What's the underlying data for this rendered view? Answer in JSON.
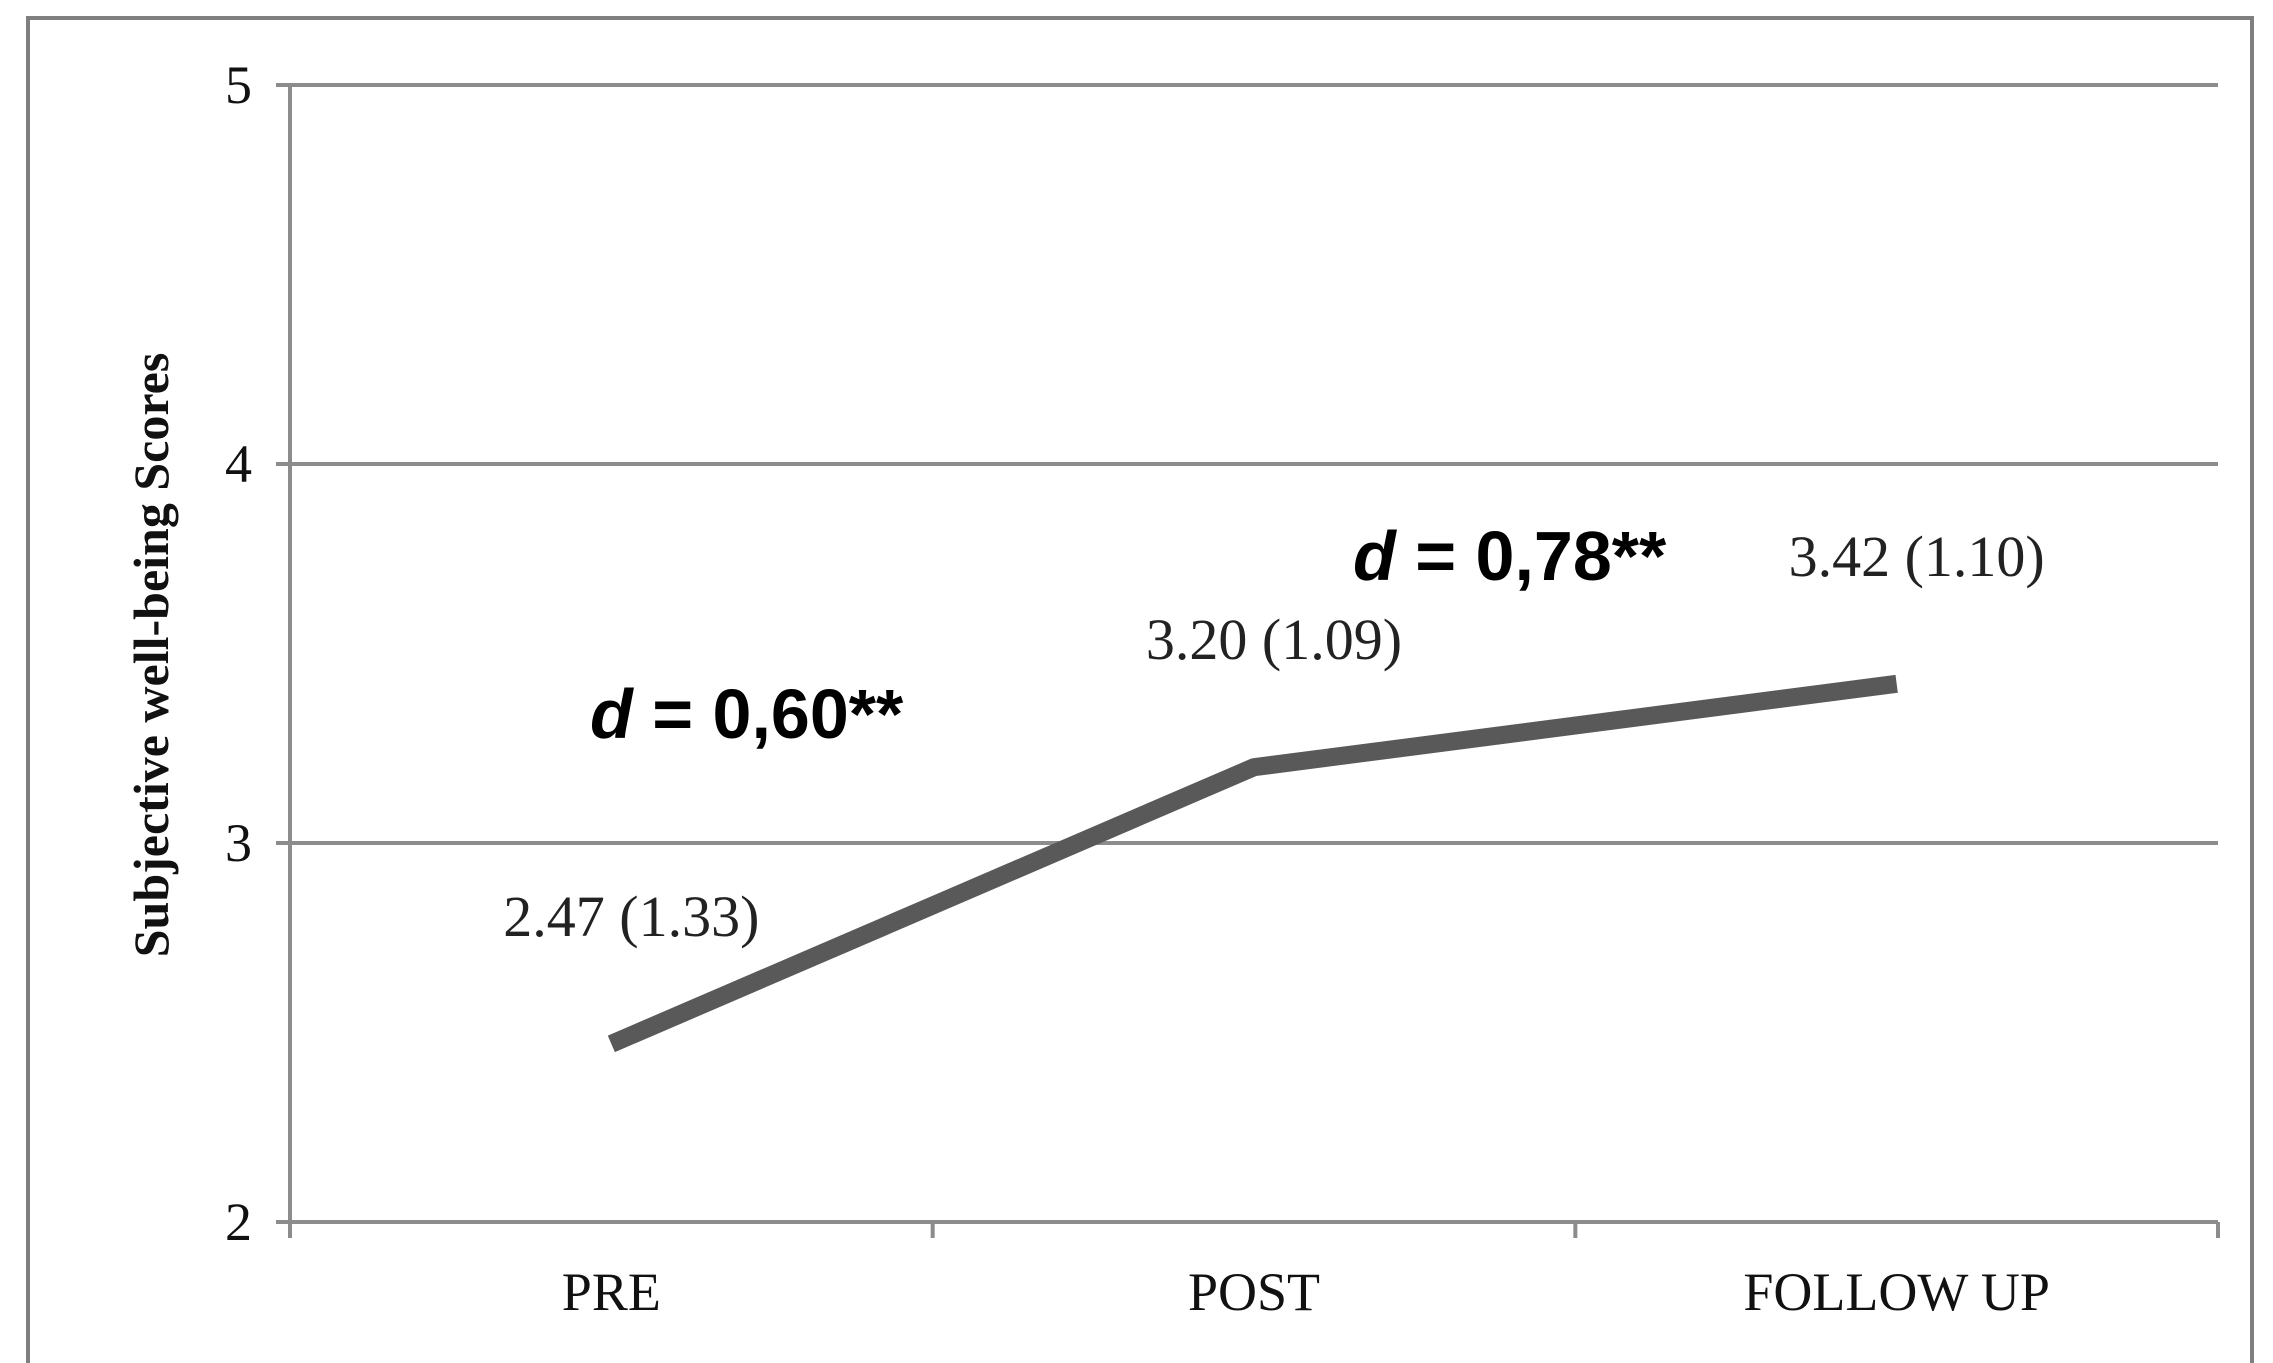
{
  "chart_data": {
    "type": "line",
    "categories": [
      "PRE",
      "POST",
      "FOLLOW UP"
    ],
    "series": [
      {
        "values": [
          2.47,
          3.2,
          3.42
        ]
      }
    ],
    "data_labels": [
      "2.47 (1.33)",
      "3.20 (1.09)",
      "3.42 (1.10)"
    ],
    "ylabel": "Subjective well-being Scores",
    "xlabel": "",
    "ylim": [
      2,
      5
    ],
    "yticks": [
      2,
      3,
      4,
      5
    ],
    "grid": true,
    "annotations": [
      {
        "italic": "d",
        "text": " = 0,60**"
      },
      {
        "italic": "d",
        "text": " = 0,78**"
      }
    ],
    "colors": {
      "line": "#595959",
      "grid": "#8c8c8c",
      "axis": "#8c8c8c"
    }
  }
}
